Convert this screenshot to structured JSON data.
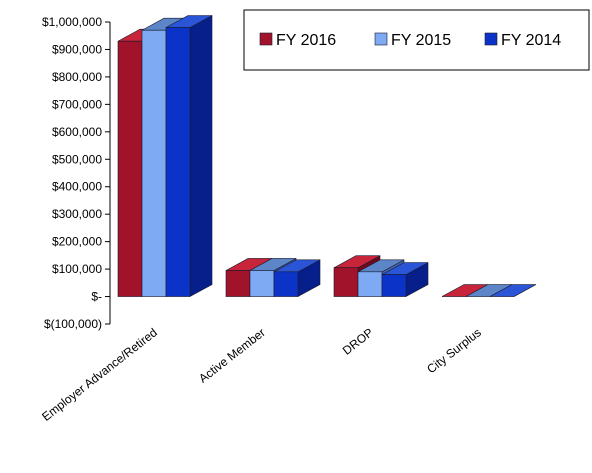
{
  "chart_data": {
    "type": "bar",
    "title": "",
    "xlabel": "",
    "ylabel": "",
    "ylim": [
      -100000,
      1000000
    ],
    "y_ticks": [
      -100000,
      0,
      100000,
      200000,
      300000,
      400000,
      500000,
      600000,
      700000,
      800000,
      900000,
      1000000
    ],
    "y_tick_labels": [
      "$(100,000)",
      "$-",
      "$100,000",
      "$200,000",
      "$300,000",
      "$400,000",
      "$500,000",
      "$600,000",
      "$700,000",
      "$800,000",
      "$900,000",
      "$1,000,000"
    ],
    "categories": [
      "Employer Advance/Retired",
      "Active Member",
      "DROP",
      "City Surplus"
    ],
    "series": [
      {
        "name": "FY 2016",
        "values": [
          930000,
          95000,
          105000,
          0
        ]
      },
      {
        "name": "FY 2015",
        "values": [
          970000,
          95000,
          90000,
          0
        ]
      },
      {
        "name": "FY 2014",
        "values": [
          980000,
          90000,
          80000,
          0
        ]
      }
    ],
    "colors": {
      "FY 2016": {
        "front": "#A0132B",
        "top": "#C9253A",
        "side": "#6E0A1C"
      },
      "FY 2015": {
        "front": "#7DAAF2",
        "top": "#5D86C9",
        "side": "#3F66AA"
      },
      "FY 2014": {
        "front": "#0C33C8",
        "top": "#2A55D6",
        "side": "#061F8A"
      }
    },
    "grid": false,
    "legend_position": "top-right",
    "projection": "3d"
  }
}
